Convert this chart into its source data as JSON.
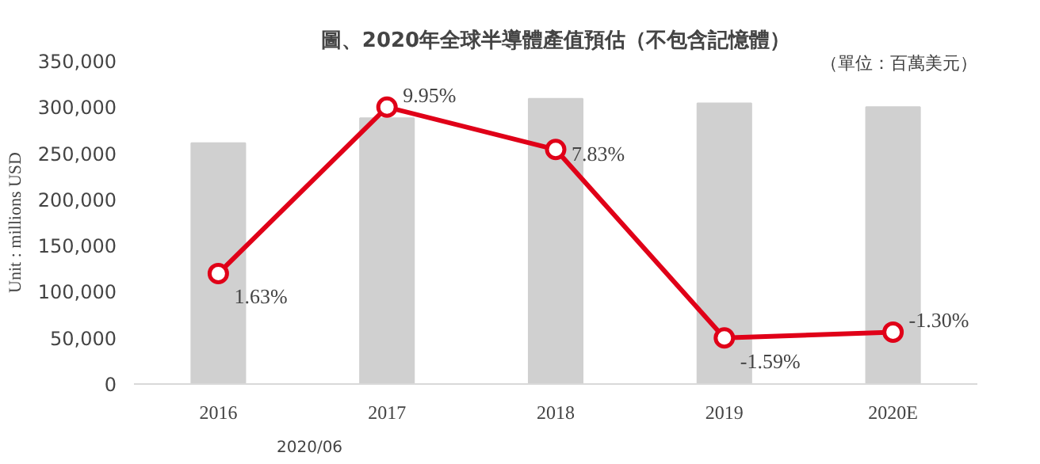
{
  "chart_data": {
    "type": "bar",
    "title": "圖、2020年全球半導體產值預估（不包含記憶體）",
    "subtitle": "（單位：百萬美元）",
    "ylabel": "Unit : millions USD",
    "annotations": [
      "2020/06"
    ],
    "categories": [
      "2016",
      "2017",
      "2018",
      "2019",
      "2020E"
    ],
    "ylim": [
      0,
      350000
    ],
    "yticks": [
      {
        "value": 0,
        "label": "0"
      },
      {
        "value": 50000,
        "label": "50,000"
      },
      {
        "value": 100000,
        "label": "100,000"
      },
      {
        "value": 150000,
        "label": "150,000"
      },
      {
        "value": 200000,
        "label": "200,000"
      },
      {
        "value": 250000,
        "label": "250,000"
      },
      {
        "value": 300000,
        "label": "300,000"
      },
      {
        "value": 350000,
        "label": "350,000"
      }
    ],
    "grid": false,
    "series": [
      {
        "color": "#d0d0d0",
        "values": [
          261000,
          288000,
          309000,
          304000,
          300000
        ]
      },
      {
        "type": "line",
        "axis": "y2",
        "color": "#e00018",
        "marker": "circle",
        "line_style": "solid",
        "values": [
          1.63,
          9.95,
          7.83,
          -1.59,
          -1.3
        ],
        "value_labels": [
          "1.63%",
          "9.95%",
          "7.83%",
          "-1.59%",
          "-1.30%"
        ]
      }
    ]
  }
}
